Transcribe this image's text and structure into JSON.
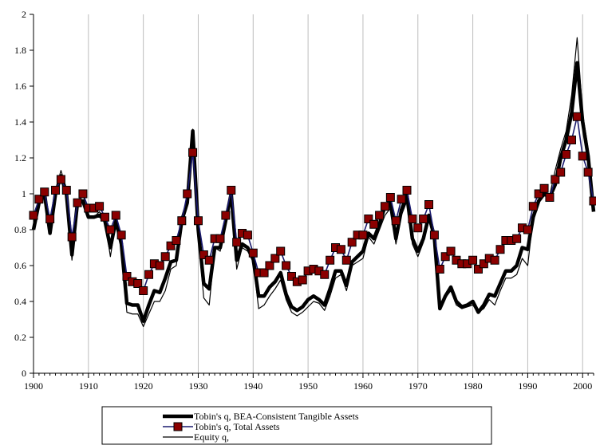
{
  "chart_data": {
    "type": "line",
    "title": "",
    "xlabel": "",
    "ylabel": "",
    "xlim": [
      1900,
      2002
    ],
    "ylim": [
      0,
      2
    ],
    "x_ticks": [
      "1900",
      "1910",
      "1920",
      "1930",
      "1940",
      "1950",
      "1960",
      "1970",
      "1980",
      "1990",
      "2000"
    ],
    "y_ticks": [
      "0",
      "0.2",
      "0.4",
      "0.6",
      "0.8",
      "1",
      "1.2",
      "1.4",
      "1.6",
      "1.8",
      "2"
    ],
    "grid": "vertical",
    "legend_position": "bottom",
    "x": [
      1900,
      1901,
      1902,
      1903,
      1904,
      1905,
      1906,
      1907,
      1908,
      1909,
      1910,
      1911,
      1912,
      1913,
      1914,
      1915,
      1916,
      1917,
      1918,
      1919,
      1920,
      1921,
      1922,
      1923,
      1924,
      1925,
      1926,
      1927,
      1928,
      1929,
      1930,
      1931,
      1932,
      1933,
      1934,
      1935,
      1936,
      1937,
      1938,
      1939,
      1940,
      1941,
      1942,
      1943,
      1944,
      1945,
      1946,
      1947,
      1948,
      1949,
      1950,
      1951,
      1952,
      1953,
      1954,
      1955,
      1956,
      1957,
      1958,
      1959,
      1960,
      1961,
      1962,
      1963,
      1964,
      1965,
      1966,
      1967,
      1968,
      1969,
      1970,
      1971,
      1972,
      1973,
      1974,
      1975,
      1976,
      1977,
      1978,
      1979,
      1980,
      1981,
      1982,
      1983,
      1984,
      1985,
      1986,
      1987,
      1988,
      1989,
      1990,
      1991,
      1992,
      1993,
      1994,
      1995,
      1996,
      1997,
      1998,
      1999,
      2000,
      2001,
      2002
    ],
    "series": [
      {
        "name": "Tobin's q, BEA-Consistent Tangible Assets",
        "color": "#000000",
        "style": "thick",
        "values": [
          0.8,
          0.95,
          1.0,
          0.78,
          1.0,
          1.1,
          1.0,
          0.66,
          0.95,
          0.96,
          0.87,
          0.87,
          0.88,
          0.85,
          0.7,
          0.85,
          0.72,
          0.39,
          0.38,
          0.38,
          0.29,
          0.38,
          0.46,
          0.45,
          0.53,
          0.62,
          0.63,
          0.85,
          0.95,
          1.35,
          0.8,
          0.5,
          0.47,
          0.7,
          0.7,
          0.85,
          1.0,
          0.63,
          0.72,
          0.7,
          0.64,
          0.43,
          0.43,
          0.48,
          0.51,
          0.56,
          0.44,
          0.37,
          0.35,
          0.37,
          0.41,
          0.43,
          0.41,
          0.38,
          0.47,
          0.57,
          0.57,
          0.49,
          0.62,
          0.65,
          0.68,
          0.78,
          0.75,
          0.83,
          0.93,
          0.95,
          0.75,
          0.91,
          0.99,
          0.75,
          0.68,
          0.75,
          0.88,
          0.76,
          0.36,
          0.43,
          0.48,
          0.4,
          0.37,
          0.38,
          0.4,
          0.34,
          0.38,
          0.44,
          0.43,
          0.5,
          0.57,
          0.57,
          0.6,
          0.7,
          0.69,
          0.87,
          0.96,
          1.0,
          0.98,
          1.05,
          1.2,
          1.3,
          1.45,
          1.73,
          1.4,
          1.21,
          0.9
        ]
      },
      {
        "name": "Tobin's q, Total Assets",
        "color": "#1a1a6e",
        "marker": "square",
        "marker_color": "#8b0000",
        "values": [
          0.88,
          0.97,
          1.01,
          0.86,
          1.02,
          1.08,
          1.02,
          0.76,
          0.95,
          1.0,
          0.92,
          0.92,
          0.93,
          0.87,
          0.8,
          0.88,
          0.77,
          0.54,
          0.51,
          0.5,
          0.46,
          0.55,
          0.61,
          0.6,
          0.65,
          0.71,
          0.74,
          0.85,
          1.0,
          1.23,
          0.85,
          0.66,
          0.63,
          0.75,
          0.75,
          0.88,
          1.02,
          0.73,
          0.78,
          0.77,
          0.67,
          0.56,
          0.56,
          0.6,
          0.64,
          0.68,
          0.6,
          0.54,
          0.51,
          0.52,
          0.57,
          0.58,
          0.57,
          0.55,
          0.63,
          0.7,
          0.69,
          0.63,
          0.73,
          0.77,
          0.77,
          0.86,
          0.83,
          0.88,
          0.93,
          0.98,
          0.85,
          0.97,
          1.02,
          0.86,
          0.81,
          0.86,
          0.94,
          0.77,
          0.58,
          0.65,
          0.68,
          0.63,
          0.61,
          0.61,
          0.63,
          0.58,
          0.61,
          0.64,
          0.63,
          0.69,
          0.74,
          0.74,
          0.75,
          0.81,
          0.8,
          0.93,
          1.0,
          1.03,
          0.98,
          1.08,
          1.12,
          1.22,
          1.3,
          1.43,
          1.21,
          1.12,
          0.96
        ]
      },
      {
        "name": "Equity q,",
        "color": "#000000",
        "style": "thin",
        "values": [
          0.83,
          0.96,
          1.0,
          0.8,
          1.02,
          1.13,
          1.03,
          0.63,
          0.95,
          1.0,
          0.87,
          0.87,
          0.9,
          0.85,
          0.65,
          0.84,
          0.7,
          0.34,
          0.33,
          0.33,
          0.26,
          0.33,
          0.4,
          0.4,
          0.46,
          0.58,
          0.6,
          0.83,
          0.95,
          1.36,
          0.77,
          0.42,
          0.38,
          0.7,
          0.68,
          0.86,
          1.02,
          0.58,
          0.7,
          0.68,
          0.62,
          0.36,
          0.38,
          0.43,
          0.47,
          0.52,
          0.41,
          0.34,
          0.32,
          0.34,
          0.37,
          0.4,
          0.39,
          0.35,
          0.43,
          0.53,
          0.55,
          0.46,
          0.6,
          0.62,
          0.64,
          0.76,
          0.72,
          0.8,
          0.88,
          0.92,
          0.72,
          0.88,
          0.96,
          0.72,
          0.65,
          0.73,
          0.85,
          0.74,
          0.37,
          0.42,
          0.46,
          0.38,
          0.36,
          0.37,
          0.38,
          0.34,
          0.36,
          0.41,
          0.38,
          0.46,
          0.53,
          0.53,
          0.55,
          0.64,
          0.6,
          0.87,
          0.97,
          1.01,
          0.99,
          1.13,
          1.25,
          1.35,
          1.55,
          1.87,
          1.45,
          1.25,
          0.93
        ]
      }
    ]
  }
}
